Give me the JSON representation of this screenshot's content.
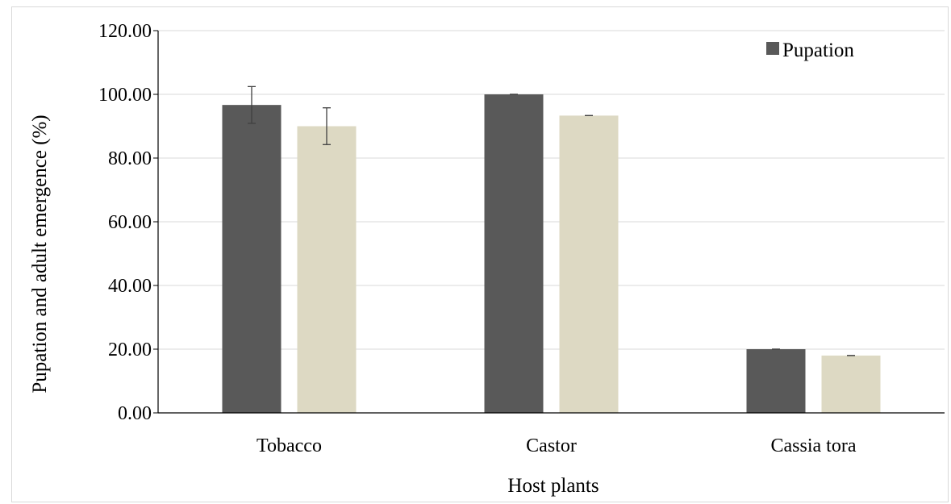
{
  "chart_data": {
    "type": "bar",
    "title": "",
    "xlabel": "Host plants",
    "ylabel": "Pupation and adult emergence (%)",
    "categories": [
      "Tobacco",
      "Castor",
      "Cassia tora"
    ],
    "ylim": [
      0,
      120
    ],
    "yticks": [
      "0.00",
      "20.00",
      "40.00",
      "60.00",
      "80.00",
      "100.00",
      "120.00"
    ],
    "grid": true,
    "legend_position": "top-right",
    "series": [
      {
        "name": "Pupation",
        "color": "#595959",
        "values": [
          96.67,
          100.0,
          20.0
        ],
        "errors": [
          5.77,
          0.0,
          0.0
        ]
      },
      {
        "color": "#ddd9c3",
        "values": [
          90.0,
          93.33,
          18.0
        ],
        "errors": [
          5.77,
          0.0,
          0.0
        ]
      }
    ]
  }
}
